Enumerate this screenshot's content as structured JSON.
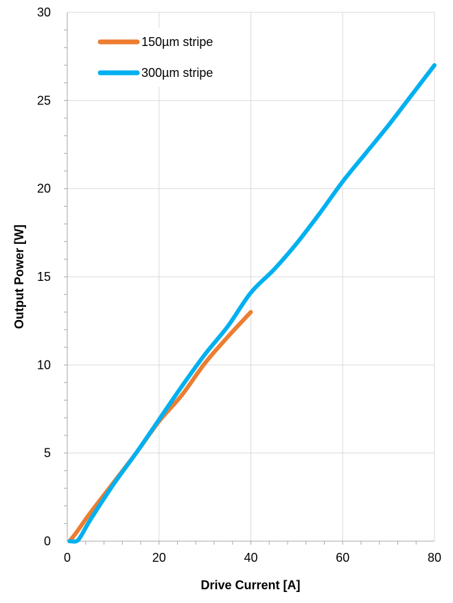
{
  "chart_data": {
    "type": "line",
    "title": "",
    "xlabel": "Drive Current [A]",
    "ylabel": "Output Power [W]",
    "xlim": [
      0,
      80
    ],
    "ylim": [
      0,
      30
    ],
    "x_ticks": [
      0,
      20,
      40,
      60,
      80
    ],
    "y_ticks": [
      0,
      5,
      10,
      15,
      20,
      25,
      30
    ],
    "x_tick_labels": [
      "0",
      "20",
      "40",
      "60",
      "80"
    ],
    "y_tick_labels": [
      "0",
      "5",
      "10",
      "15",
      "20",
      "25",
      "30"
    ],
    "grid": true,
    "legend_position": "top-left",
    "series": [
      {
        "name": "150µm stripe",
        "color": "#ED7D31",
        "x": [
          0.5,
          2,
          5,
          10,
          15,
          20,
          25,
          30,
          35,
          40
        ],
        "y": [
          0,
          0.5,
          1.6,
          3.3,
          5.0,
          6.8,
          8.3,
          10.1,
          11.6,
          13.0
        ]
      },
      {
        "name": "300µm stripe",
        "color": "#00B0F0",
        "x": [
          0.5,
          2,
          3,
          5,
          10,
          15,
          20,
          25,
          30,
          35,
          40,
          45,
          50,
          55,
          60,
          65,
          70,
          75,
          80
        ],
        "y": [
          0,
          0,
          0.3,
          1.2,
          3.2,
          5.0,
          6.9,
          8.8,
          10.6,
          12.2,
          14.1,
          15.4,
          16.9,
          18.6,
          20.4,
          22.0,
          23.6,
          25.3,
          27.0
        ]
      }
    ]
  }
}
